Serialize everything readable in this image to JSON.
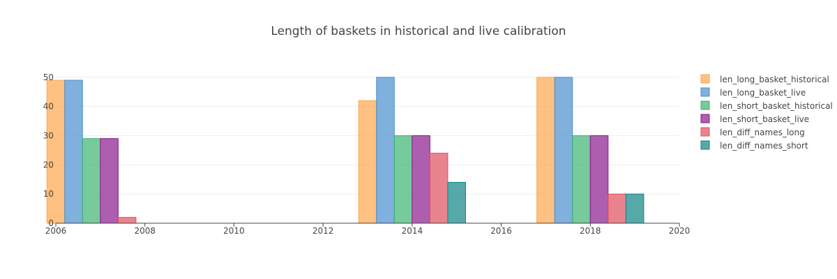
{
  "chart_data": {
    "type": "bar",
    "title": "Length of baskets in historical and live calibration",
    "xlabel": "",
    "ylabel": "",
    "x": [
      2007,
      2014,
      2018
    ],
    "xlim": [
      2006,
      2020
    ],
    "ylim": [
      0,
      52
    ],
    "x_ticks": [
      2006,
      2008,
      2010,
      2012,
      2014,
      2016,
      2018,
      2020
    ],
    "y_ticks": [
      0,
      10,
      20,
      30,
      40,
      50
    ],
    "grid": true,
    "legend_position": "right",
    "series": [
      {
        "name": "len_long_basket_historical",
        "values": [
          49,
          42,
          50
        ],
        "color": "#ffa64d"
      },
      {
        "name": "len_long_basket_live",
        "values": [
          49,
          50,
          50
        ],
        "color": "#4a8fcf"
      },
      {
        "name": "len_short_basket_historical",
        "values": [
          29,
          30,
          30
        ],
        "color": "#3cb371"
      },
      {
        "name": "len_short_basket_live",
        "values": [
          29,
          30,
          30
        ],
        "color": "#8b1a8b"
      },
      {
        "name": "len_diff_names_long",
        "values": [
          2,
          24,
          10
        ],
        "color": "#e0505f"
      },
      {
        "name": "len_diff_names_short",
        "values": [
          0,
          14,
          10
        ],
        "color": "#108585"
      }
    ]
  }
}
